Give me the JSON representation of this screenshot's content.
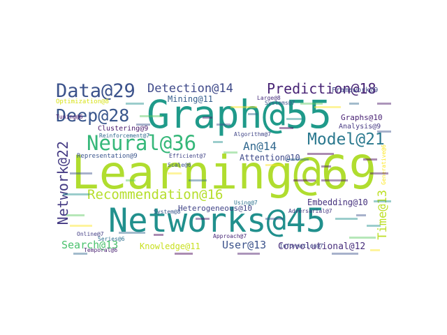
{
  "chart_data": {
    "type": "wordcloud",
    "title": "",
    "words": [
      {
        "text": "Learning@69",
        "weight": 69,
        "color": "#b0dd2f"
      },
      {
        "text": "Graph@55",
        "weight": 55,
        "color": "#1f9a8a"
      },
      {
        "text": "Networks@45",
        "weight": 45,
        "color": "#21908d"
      },
      {
        "text": "Neural@36",
        "weight": 36,
        "color": "#35b779"
      },
      {
        "text": "Data@29",
        "weight": 29,
        "color": "#3b528b"
      },
      {
        "text": "Deep@28",
        "weight": 28,
        "color": "#39568c"
      },
      {
        "text": "Network@22",
        "weight": 22,
        "color": "#443a83"
      },
      {
        "text": "Model@21",
        "weight": 21,
        "color": "#2a788e"
      },
      {
        "text": "Prediction@18",
        "weight": 18,
        "color": "#482475"
      },
      {
        "text": "Recommendation@16",
        "weight": 16,
        "color": "#b5de2b"
      },
      {
        "text": "Detection@14",
        "weight": 14,
        "color": "#3e4989"
      },
      {
        "text": "An@14",
        "weight": 14,
        "color": "#31688e"
      },
      {
        "text": "Time@13",
        "weight": 13,
        "color": "#bddf26"
      },
      {
        "text": "Search@13",
        "weight": 13,
        "color": "#4ac16d"
      },
      {
        "text": "User@13",
        "weight": 13,
        "color": "#3b528b"
      },
      {
        "text": "Convolutional@12",
        "weight": 12,
        "color": "#472d7b"
      },
      {
        "text": "Mining@11",
        "weight": 11,
        "color": "#355f8d"
      },
      {
        "text": "Knowledge@11",
        "weight": 11,
        "color": "#c8e020"
      },
      {
        "text": "Attention@10",
        "weight": 10,
        "color": "#3e4989"
      },
      {
        "text": "Heterogeneous@10",
        "weight": 10,
        "color": "#414487"
      },
      {
        "text": "Embedding@10",
        "weight": 10,
        "color": "#46327e"
      },
      {
        "text": "Graphs@10",
        "weight": 10,
        "color": "#482173"
      },
      {
        "text": "Framework@9",
        "weight": 9,
        "color": "#3f4788"
      },
      {
        "text": "Analysis@9",
        "weight": 9,
        "color": "#453882"
      },
      {
        "text": "Clustering@9",
        "weight": 9,
        "color": "#48186a"
      },
      {
        "text": "Representation@9",
        "weight": 9,
        "color": "#3a548c"
      },
      {
        "text": "Optimization@8",
        "weight": 8,
        "color": "#d8e219"
      },
      {
        "text": "System@8",
        "weight": 8,
        "color": "#39568c"
      },
      {
        "text": "Reinforcement@7",
        "weight": 7,
        "color": "#31688e"
      },
      {
        "text": "Algorithm@7",
        "weight": 7,
        "color": "#404688"
      },
      {
        "text": "Approach@7",
        "weight": 7,
        "color": "#482677"
      },
      {
        "text": "Adversarial@7",
        "weight": 7,
        "color": "#453882"
      },
      {
        "text": "Systems@7",
        "weight": 7,
        "color": "#39568c"
      },
      {
        "text": "Using@7",
        "weight": 7,
        "color": "#2c728e"
      },
      {
        "text": "Information@7",
        "weight": 7,
        "color": "#3e4989"
      },
      {
        "text": "Large@8",
        "weight": 8,
        "color": "#472f7d"
      },
      {
        "text": "Online@7",
        "weight": 7,
        "color": "#433e85"
      },
      {
        "text": "Temporal@6",
        "weight": 6,
        "color": "#481f70"
      },
      {
        "text": "Scale@6",
        "weight": 6,
        "color": "#3b528b"
      },
      {
        "text": "Series@6",
        "weight": 6,
        "color": "#2d708e"
      },
      {
        "text": "Efficient@7",
        "weight": 7,
        "color": "#414487"
      },
      {
        "text": "Tuning@6",
        "weight": 6,
        "color": "#481467"
      },
      {
        "text": "Generative@6",
        "weight": 6,
        "color": "#fde725"
      }
    ]
  }
}
